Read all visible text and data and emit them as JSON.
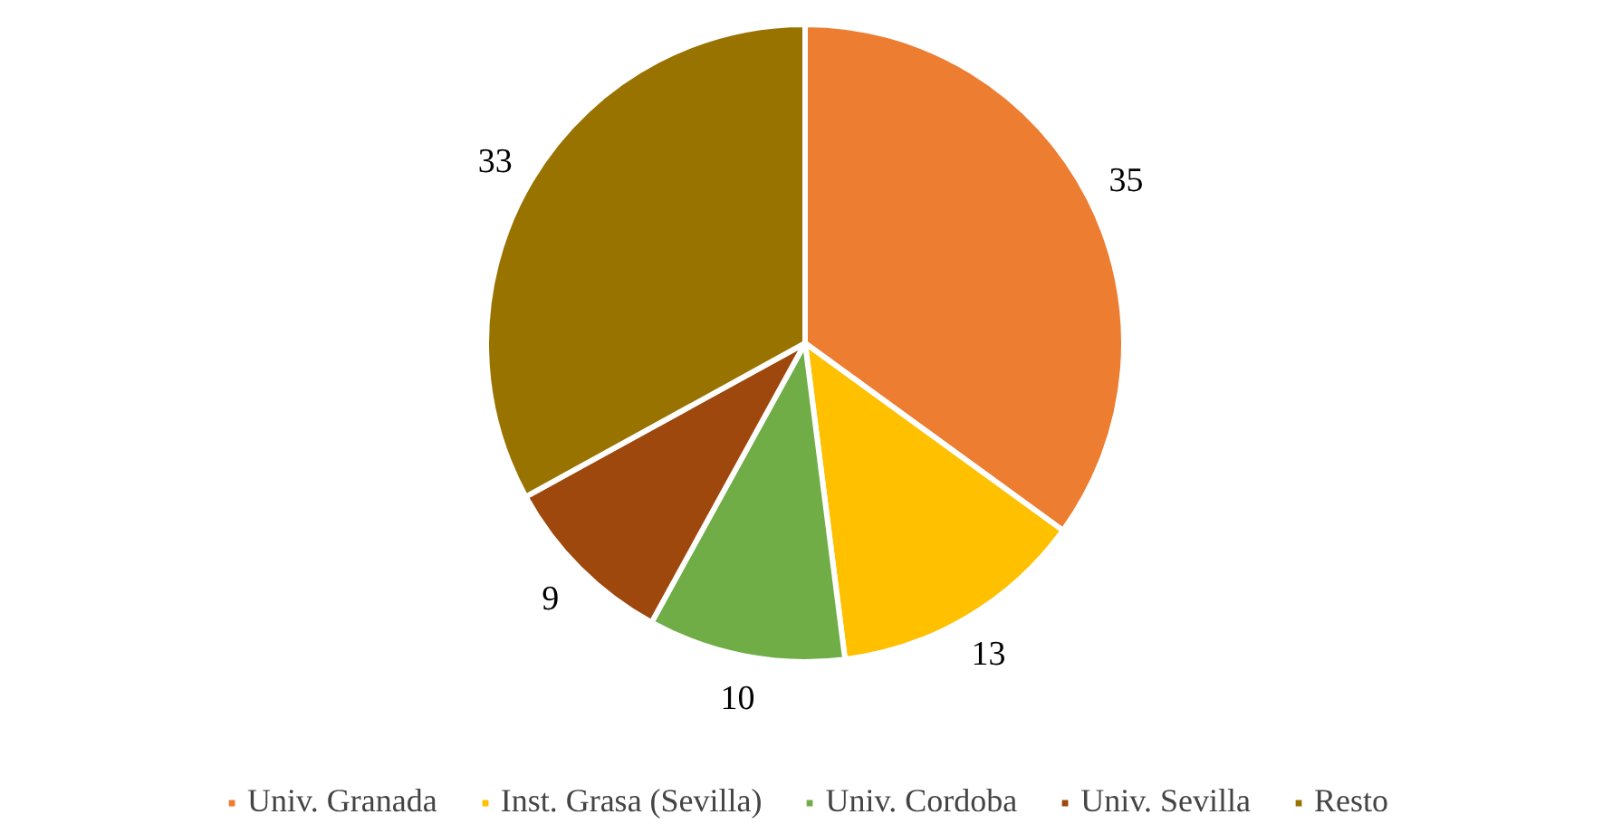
{
  "chart_data": {
    "type": "pie",
    "categories": [
      "Univ. Granada",
      "Inst. Grasa (Sevilla)",
      "Univ. Cordoba",
      "Univ. Sevilla",
      "Resto"
    ],
    "values": [
      35,
      13,
      10,
      9,
      33
    ],
    "colors": [
      "#ed7d31",
      "#ffc000",
      "#70ad47",
      "#9e480e",
      "#997300"
    ],
    "data_labels": true,
    "legend": "bottom"
  }
}
